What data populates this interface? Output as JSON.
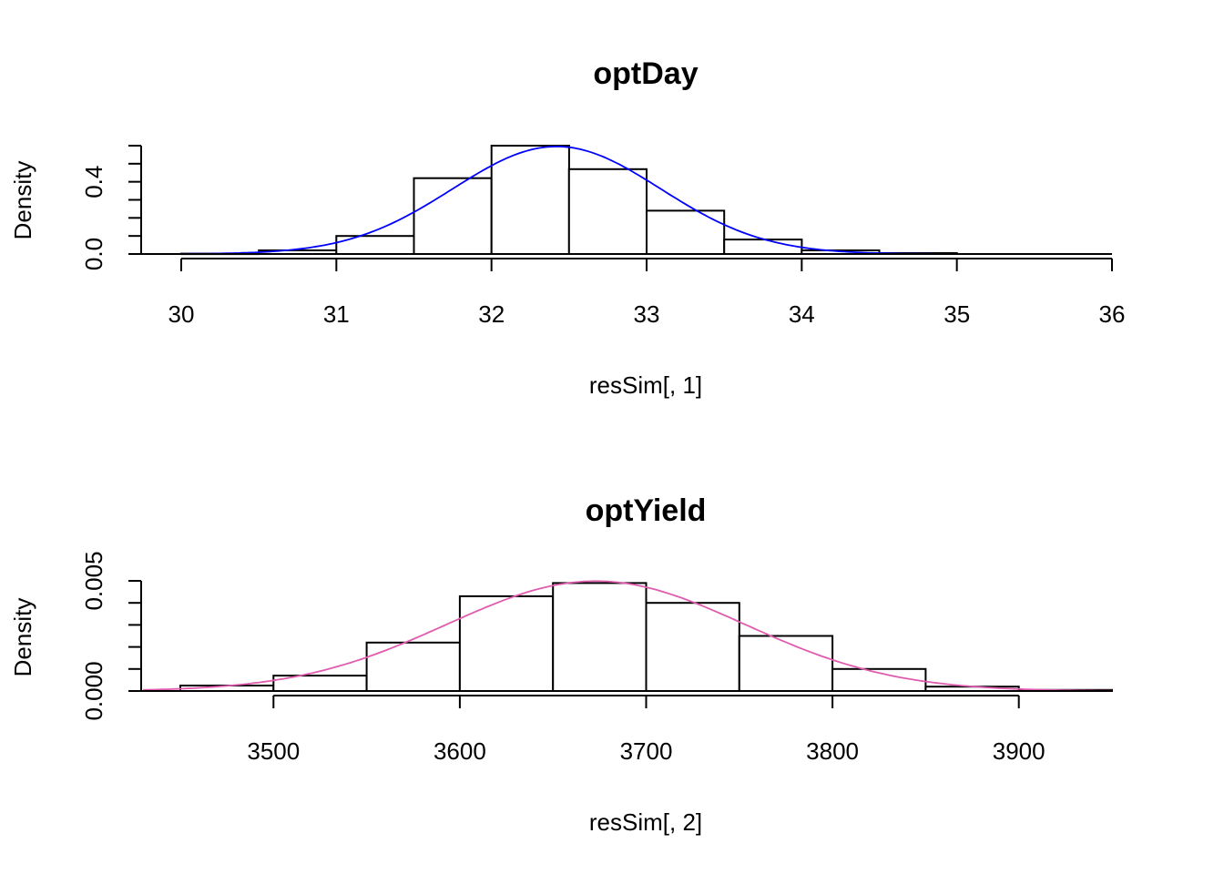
{
  "chart_data": [
    {
      "type": "histogram",
      "title": "optDay",
      "xlabel": "resSim[, 1]",
      "ylabel": "Density",
      "xticks": [
        "30",
        "31",
        "32",
        "33",
        "34",
        "35",
        "36"
      ],
      "yticks": [
        "0.0",
        "0.4"
      ],
      "bins": [
        {
          "start": 30.0,
          "end": 30.5,
          "density": 0.002
        },
        {
          "start": 30.5,
          "end": 31.0,
          "density": 0.02
        },
        {
          "start": 31.0,
          "end": 31.5,
          "density": 0.1
        },
        {
          "start": 31.5,
          "end": 32.0,
          "density": 0.42
        },
        {
          "start": 32.0,
          "end": 32.5,
          "density": 0.6
        },
        {
          "start": 32.5,
          "end": 33.0,
          "density": 0.47
        },
        {
          "start": 33.0,
          "end": 33.5,
          "density": 0.24
        },
        {
          "start": 33.5,
          "end": 34.0,
          "density": 0.08
        },
        {
          "start": 34.0,
          "end": 34.5,
          "density": 0.02
        },
        {
          "start": 34.5,
          "end": 35.0,
          "density": 0.005
        }
      ],
      "curve": {
        "type": "normal",
        "mean": 32.42,
        "sd": 0.67,
        "x_range": [
          30,
          35
        ],
        "color": "#0000FF"
      }
    },
    {
      "type": "histogram",
      "title": "optYield",
      "xlabel": "resSim[, 2]",
      "ylabel": "Density",
      "xticks": [
        "3500",
        "3600",
        "3700",
        "3800",
        "3900"
      ],
      "yticks": [
        "0.000",
        "0.005"
      ],
      "bins": [
        {
          "start": 3450,
          "end": 3500,
          "density": 0.00025
        },
        {
          "start": 3500,
          "end": 3550,
          "density": 0.0007
        },
        {
          "start": 3550,
          "end": 3600,
          "density": 0.0022
        },
        {
          "start": 3600,
          "end": 3650,
          "density": 0.0043
        },
        {
          "start": 3650,
          "end": 3700,
          "density": 0.0049
        },
        {
          "start": 3700,
          "end": 3750,
          "density": 0.004
        },
        {
          "start": 3750,
          "end": 3800,
          "density": 0.0025
        },
        {
          "start": 3800,
          "end": 3850,
          "density": 0.001
        },
        {
          "start": 3850,
          "end": 3900,
          "density": 0.0002
        },
        {
          "start": 3900,
          "end": 3950,
          "density": 5e-05
        }
      ],
      "curve": {
        "type": "normal",
        "mean": 3673,
        "sd": 80,
        "x_range": [
          3430,
          3950
        ],
        "color": "#E05CAE"
      }
    }
  ]
}
